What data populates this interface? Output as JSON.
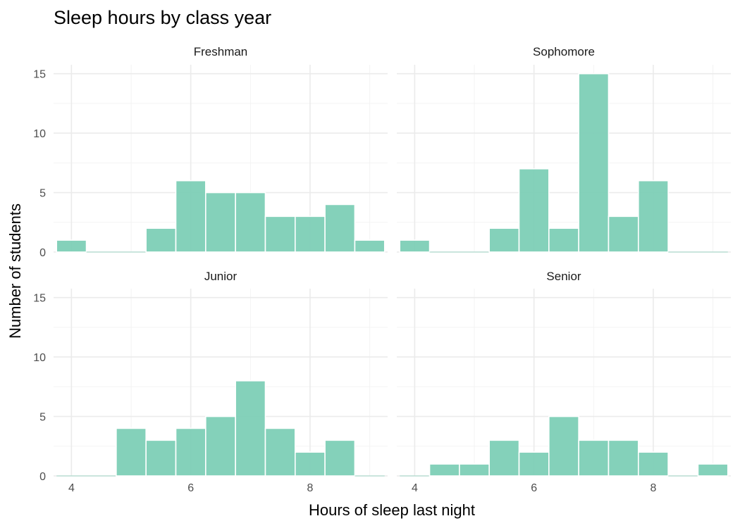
{
  "chart_data": {
    "type": "histogram",
    "title": "Sleep hours by class year",
    "xlabel": "Hours of sleep last night",
    "ylabel": "Number of students",
    "bar_color": "#7dcfb6",
    "binwidth": 0.5,
    "xlim": [
      3.7,
      9.3
    ],
    "ylim": [
      0,
      15.75
    ],
    "x_ticks": [
      4,
      6,
      8
    ],
    "y_ticks": [
      0,
      5,
      10,
      15
    ],
    "grid": true,
    "bin_centers": [
      4.0,
      4.5,
      5.0,
      5.5,
      6.0,
      6.5,
      7.0,
      7.5,
      8.0,
      8.5,
      9.0
    ],
    "facets": [
      {
        "name": "Freshman",
        "counts": [
          1,
          0,
          0,
          2,
          6,
          5,
          5,
          3,
          3,
          4,
          1
        ]
      },
      {
        "name": "Sophomore",
        "counts": [
          1,
          0,
          0,
          2,
          7,
          2,
          15,
          3,
          6,
          0,
          0
        ]
      },
      {
        "name": "Junior",
        "counts": [
          0,
          0,
          4,
          3,
          4,
          5,
          8,
          4,
          2,
          3,
          0
        ]
      },
      {
        "name": "Senior",
        "counts": [
          0,
          1,
          1,
          3,
          2,
          5,
          3,
          3,
          2,
          0,
          1
        ]
      }
    ]
  }
}
